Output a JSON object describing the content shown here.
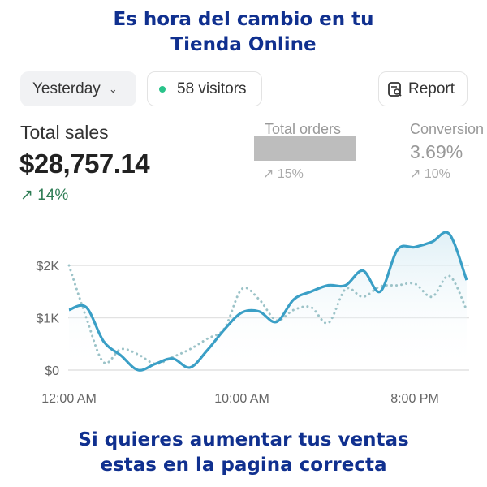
{
  "promo": {
    "top_line1": "Es hora del cambio en tu",
    "top_line2": "Tienda Online",
    "bottom_line1": "Si quieres aumentar tus ventas",
    "bottom_line2": "estas en la pagina correcta"
  },
  "toolbar": {
    "period": "Yesterday",
    "visitors": "58 visitors",
    "report": "Report"
  },
  "metrics": {
    "total_sales": {
      "label": "Total sales",
      "value": "$28,757.14",
      "change": "14%"
    },
    "total_orders": {
      "label": "Total orders",
      "change": "15%"
    },
    "conversion": {
      "label": "Conversion",
      "value": "3.69%",
      "change": "10%"
    }
  },
  "colors": {
    "headline": "#10308f",
    "current_line": "#3a9fc6",
    "previous_line": "#9cc3c8",
    "positive": "#2e7d55",
    "visitor_dot": "#29c38a"
  },
  "chart_data": {
    "type": "line",
    "x_ticks": [
      "12:00 AM",
      "10:00 AM",
      "8:00 PM"
    ],
    "y_ticks": [
      "$0",
      "$1K",
      "$2K"
    ],
    "ylim": [
      0,
      2700
    ],
    "grid": true,
    "x_hours": [
      0,
      1,
      2,
      3,
      4,
      5,
      6,
      7,
      8,
      9,
      10,
      11,
      12,
      13,
      14,
      15,
      16,
      17,
      18,
      19,
      20,
      21,
      22,
      23
    ],
    "series": [
      {
        "style": "solid",
        "values": [
          1150,
          1200,
          550,
          280,
          0,
          120,
          220,
          50,
          380,
          780,
          1100,
          1120,
          920,
          1350,
          1500,
          1620,
          1620,
          1900,
          1500,
          2300,
          2350,
          2450,
          2600,
          1720
        ]
      },
      {
        "style": "dotted",
        "values": [
          2000,
          1000,
          150,
          400,
          300,
          120,
          250,
          400,
          600,
          800,
          1550,
          1350,
          950,
          1150,
          1200,
          900,
          1550,
          1400,
          1600,
          1620,
          1650,
          1400,
          1800,
          1150
        ]
      }
    ]
  }
}
